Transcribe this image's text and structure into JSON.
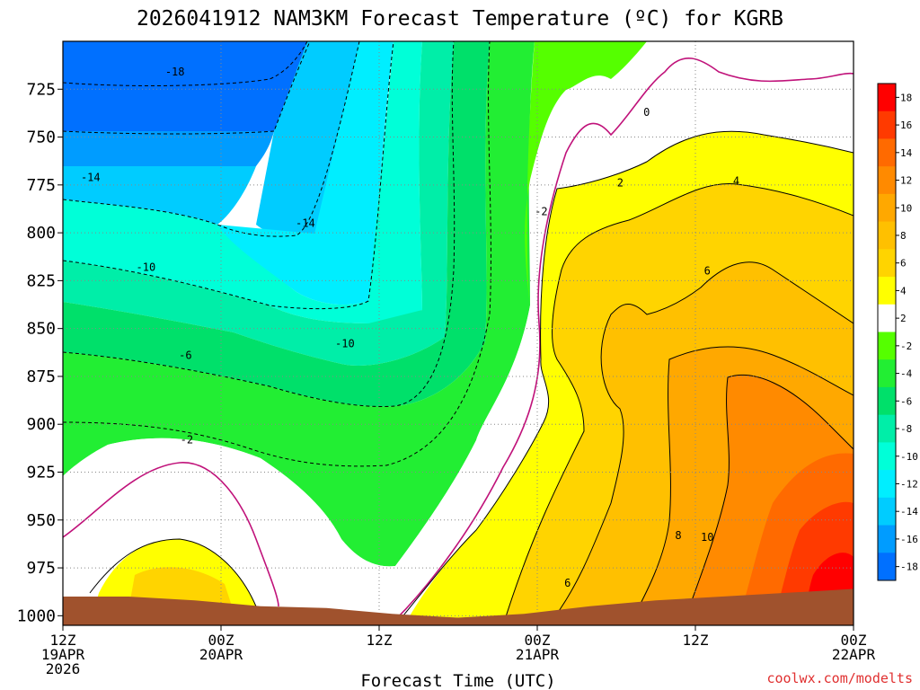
{
  "header": {
    "title": "2026041912 NAM3KM Forecast Temperature (ºC) for KGRB"
  },
  "footer": {
    "credit": "coolwx.com/modelts"
  },
  "chart_data": {
    "type": "heatmap",
    "title": "2026041912 NAM3KM Forecast Temperature (ºC) for KGRB",
    "xlabel": "Forecast Time (UTC)",
    "ylabel": "",
    "x_ticks": [
      {
        "lines": [
          "12Z",
          "19APR",
          "2026"
        ],
        "hours": 0
      },
      {
        "lines": [
          "00Z",
          "20APR"
        ],
        "hours": 12
      },
      {
        "lines": [
          "12Z"
        ],
        "hours": 24
      },
      {
        "lines": [
          "00Z",
          "21APR"
        ],
        "hours": 36
      },
      {
        "lines": [
          "12Z"
        ],
        "hours": 48
      },
      {
        "lines": [
          "00Z",
          "22APR"
        ],
        "hours": 60
      }
    ],
    "y_ticks": [
      "725",
      "750",
      "775",
      "800",
      "825",
      "850",
      "875",
      "900",
      "925",
      "950",
      "975",
      "1000"
    ],
    "x_range_hours": [
      0,
      60
    ],
    "y_range": [
      700,
      1005
    ],
    "y_axis_reversed": true,
    "grid": true,
    "colorbar": {
      "levels": [
        "18",
        "16",
        "14",
        "12",
        "10",
        "8",
        "6",
        "4",
        "2",
        "-2",
        "-4",
        "-6",
        "-8",
        "-10",
        "-12",
        "-14",
        "-16",
        "-18"
      ],
      "colors": [
        "#ff0000",
        "#ff3a00",
        "#ff6a00",
        "#ff8a00",
        "#ffa800",
        "#ffc000",
        "#ffd400",
        "#ffff00",
        "#ffffff",
        "#55ff00",
        "#22ee33",
        "#00e06a",
        "#00eea8",
        "#00ffd8",
        "#00eeff",
        "#00ccff",
        "#009cff",
        "#0070ff"
      ],
      "placement": "right"
    },
    "contour_labels": [
      {
        "text": "-18",
        "hour": 8.5,
        "p": 716
      },
      {
        "text": "-14",
        "hour": 2.1,
        "p": 771
      },
      {
        "text": "-14",
        "hour": 18.4,
        "p": 795
      },
      {
        "text": "-10",
        "hour": 6.3,
        "p": 818
      },
      {
        "text": "-10",
        "hour": 21.4,
        "p": 858
      },
      {
        "text": "-6",
        "hour": 9.3,
        "p": 864
      },
      {
        "text": "-2",
        "hour": 9.4,
        "p": 908
      },
      {
        "text": "-2",
        "hour": 36.3,
        "p": 789
      },
      {
        "text": "0",
        "hour": 44.3,
        "p": 737
      },
      {
        "text": "2",
        "hour": 42.3,
        "p": 774
      },
      {
        "text": "4",
        "hour": 51.1,
        "p": 773
      },
      {
        "text": "6",
        "hour": 48.9,
        "p": 820
      },
      {
        "text": "8",
        "hour": 46.7,
        "p": 958
      },
      {
        "text": "10",
        "hour": 48.9,
        "p": 959
      },
      {
        "text": "6",
        "hour": 38.3,
        "p": 983
      }
    ],
    "surface_pressure": [
      990,
      990,
      992,
      995,
      996,
      999,
      1001,
      999,
      995,
      992,
      990,
      988,
      986
    ]
  }
}
